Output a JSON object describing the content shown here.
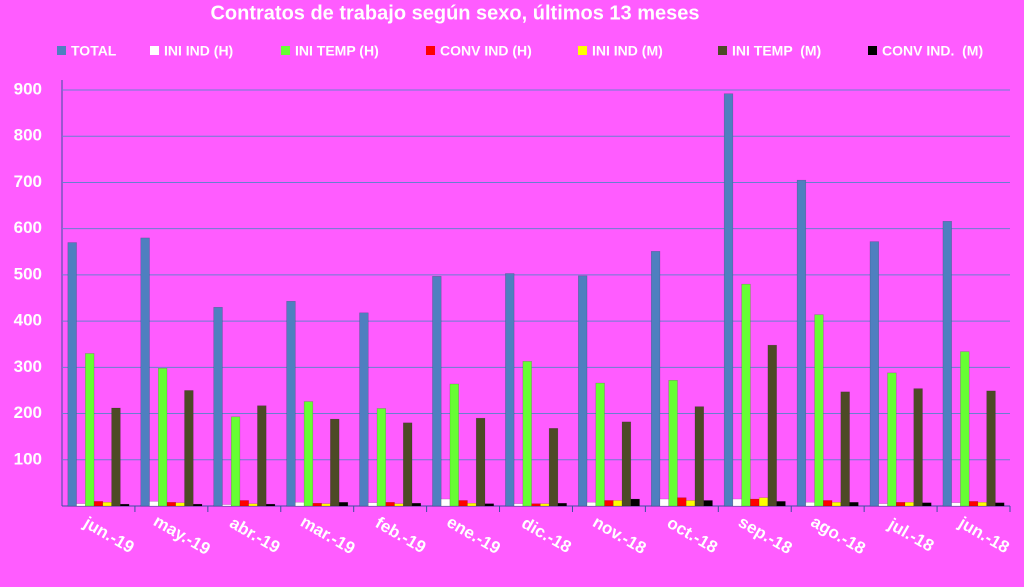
{
  "chart_data": {
    "type": "bar",
    "title": "Contratos de trabajo según sexo, últimos 13 meses",
    "categories": [
      "jun.-19",
      "may.-19",
      "abr.-19",
      "mar.-19",
      "feb.-19",
      "ene.-19",
      "dic.-18",
      "nov.-18",
      "oct.-18",
      "sep.-18",
      "ago.-18",
      "jul.-18",
      "jun.-18"
    ],
    "series": [
      {
        "name": "TOTAL",
        "color": "#4f7fc0",
        "values": [
          570,
          580,
          430,
          443,
          418,
          497,
          503,
          498,
          551,
          892,
          705,
          572,
          616
        ]
      },
      {
        "name": "INI IND (H)",
        "color": "#ffffff",
        "values": [
          5,
          10,
          3,
          8,
          7,
          15,
          5,
          8,
          15,
          15,
          8,
          5,
          7
        ]
      },
      {
        "name": "INI TEMP (H)",
        "color": "#66ff33",
        "values": [
          330,
          298,
          193,
          226,
          211,
          264,
          313,
          266,
          272,
          480,
          414,
          288,
          334
        ]
      },
      {
        "name": "CONV IND (H)",
        "color": "#ff0000",
        "values": [
          10,
          8,
          12,
          6,
          8,
          12,
          5,
          12,
          18,
          15,
          12,
          8,
          10
        ]
      },
      {
        "name": "INI IND (M)",
        "color": "#ffff00",
        "values": [
          8,
          7,
          5,
          5,
          5,
          6,
          5,
          12,
          12,
          18,
          8,
          8,
          8
        ]
      },
      {
        "name": "INI TEMP  (M)",
        "color": "#4d4a26",
        "values": [
          212,
          250,
          217,
          188,
          180,
          190,
          168,
          182,
          215,
          348,
          247,
          254,
          249
        ]
      },
      {
        "name": "CONV IND.  (M)",
        "color": "#000000",
        "values": [
          4,
          4,
          4,
          8,
          6,
          5,
          6,
          15,
          12,
          10,
          8,
          7,
          7
        ]
      }
    ],
    "ylim": [
      0,
      900
    ],
    "yticks": [
      100,
      200,
      300,
      400,
      500,
      600,
      700,
      800,
      900
    ],
    "grid": true
  }
}
